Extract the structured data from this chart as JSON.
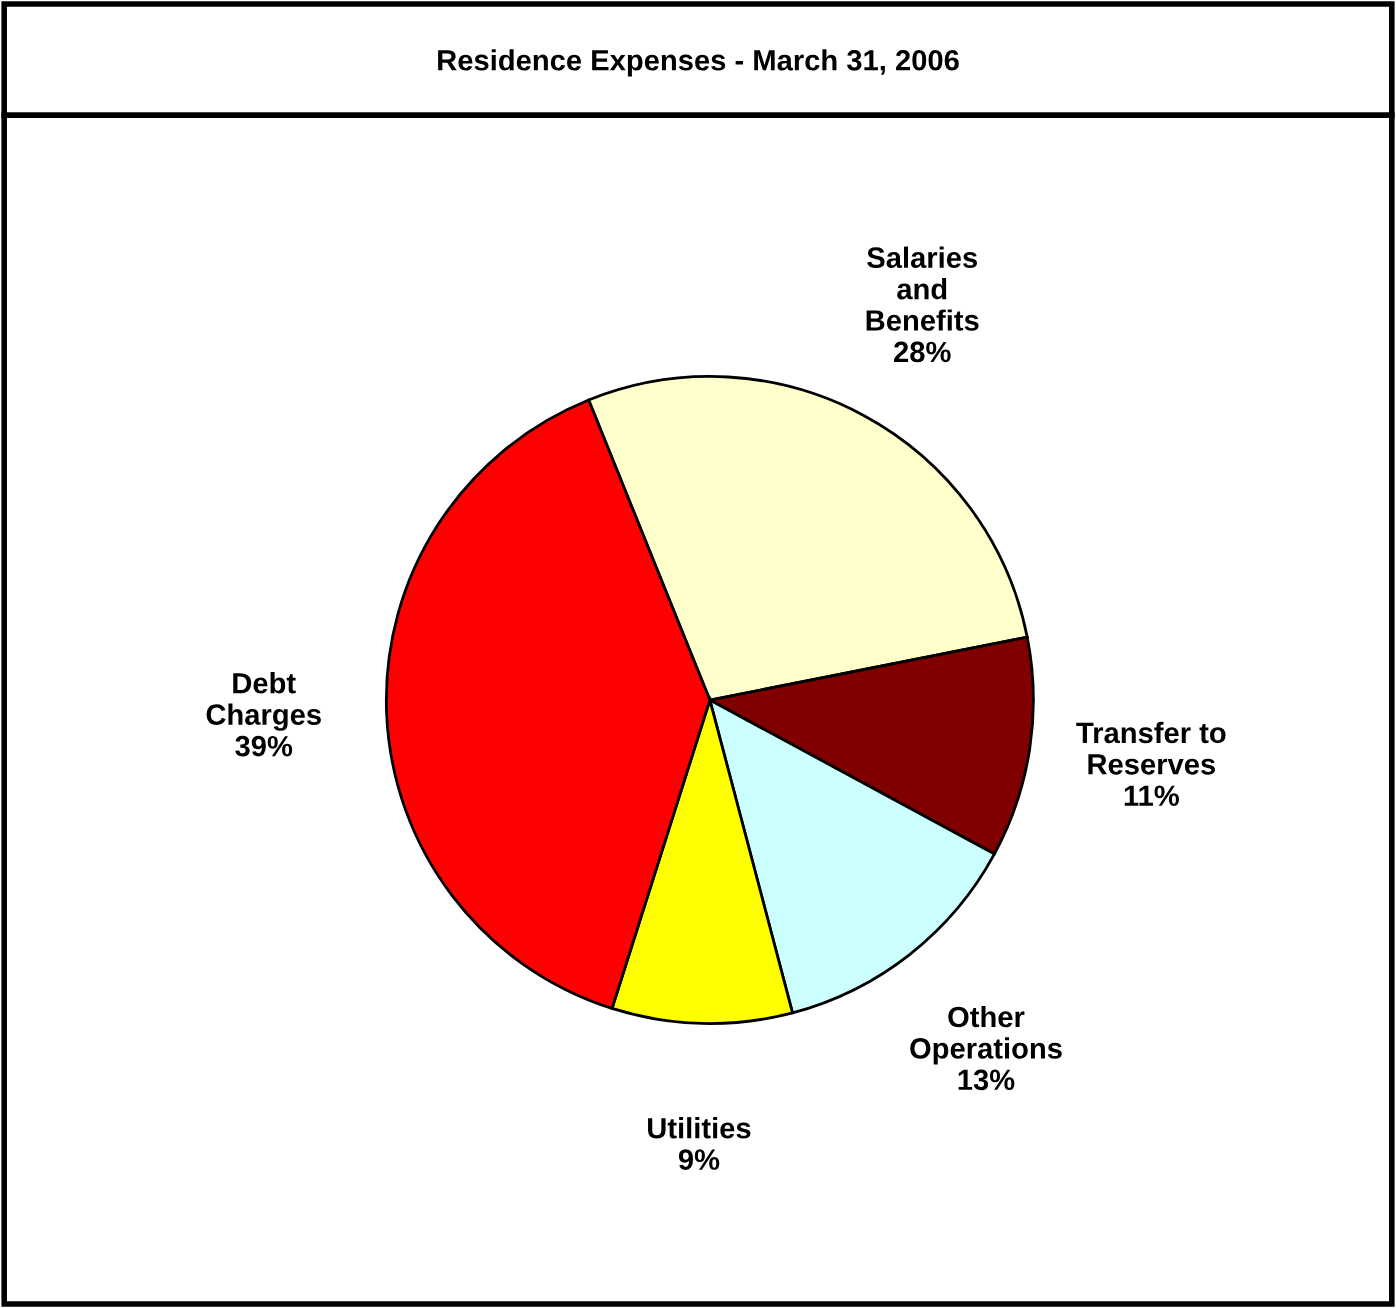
{
  "chart_data": {
    "type": "pie",
    "title": "Residence Expenses - March 31, 2006",
    "categories": [
      "Salaries\nand\nBenefits",
      "Transfer to\nReserves",
      "Other\nOperations",
      "Utilities",
      "Debt\nCharges"
    ],
    "values": [
      28,
      11,
      13,
      9,
      39
    ],
    "colors": [
      "#ffffcc",
      "#800000",
      "#ccffff",
      "#ffff00",
      "#ff0000"
    ],
    "value_labels": [
      "28%",
      "11%",
      "13%",
      "9%",
      "39%"
    ],
    "legend": false
  }
}
